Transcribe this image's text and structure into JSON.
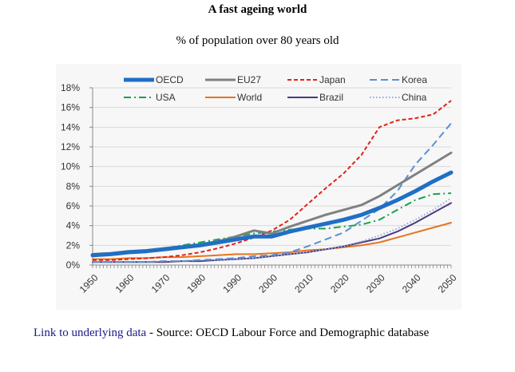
{
  "page": {
    "title": "A fast ageing world",
    "subtitle": "% of population over 80 years old",
    "footer": {
      "link_text": "Link to underlying data",
      "source_text": " - Source: OECD Labour Force and Demographic database"
    }
  },
  "chart_data": {
    "type": "line",
    "title": "A fast ageing world",
    "subtitle": "% of population over 80 years old",
    "xlabel": "",
    "ylabel": "",
    "xlim": [
      1950,
      2050
    ],
    "ylim": [
      0,
      18
    ],
    "grid": true,
    "legend_position": "top",
    "yticks": [
      "0%",
      "2%",
      "4%",
      "6%",
      "8%",
      "10%",
      "12%",
      "14%",
      "16%",
      "18%"
    ],
    "xticks": [
      "1950",
      "1960",
      "1970",
      "1980",
      "1990",
      "2000",
      "2010",
      "2020",
      "2030",
      "2040",
      "2050"
    ],
    "x": [
      1950,
      1955,
      1960,
      1965,
      1970,
      1975,
      1980,
      1985,
      1990,
      1995,
      2000,
      2005,
      2010,
      2015,
      2020,
      2025,
      2030,
      2035,
      2040,
      2045,
      2050
    ],
    "series": [
      {
        "name": "OECD",
        "color": "#1f6fc5",
        "style": "solid",
        "width": 5,
        "values": [
          1.0,
          1.1,
          1.3,
          1.4,
          1.6,
          1.8,
          2.0,
          2.3,
          2.6,
          2.9,
          2.9,
          3.4,
          3.8,
          4.2,
          4.6,
          5.1,
          5.8,
          6.6,
          7.5,
          8.5,
          9.4
        ]
      },
      {
        "name": "EU27",
        "color": "#808080",
        "style": "solid",
        "width": 3,
        "values": [
          1.1,
          1.2,
          1.4,
          1.5,
          1.7,
          1.9,
          2.1,
          2.4,
          2.9,
          3.5,
          3.2,
          3.9,
          4.5,
          5.1,
          5.6,
          6.1,
          7.0,
          8.1,
          9.2,
          10.3,
          11.4
        ]
      },
      {
        "name": "Japan",
        "color": "#e32119",
        "style": "dash",
        "width": 2,
        "values": [
          0.5,
          0.5,
          0.6,
          0.7,
          0.8,
          1.0,
          1.3,
          1.7,
          2.2,
          2.8,
          3.5,
          4.6,
          6.2,
          7.8,
          9.3,
          11.2,
          14.0,
          14.7,
          14.9,
          15.3,
          16.7
        ]
      },
      {
        "name": "Korea",
        "color": "#5b8fd4",
        "style": "longdash",
        "width": 2,
        "values": [
          0.3,
          0.3,
          0.3,
          0.3,
          0.4,
          0.4,
          0.5,
          0.6,
          0.7,
          0.9,
          1.0,
          1.3,
          1.9,
          2.6,
          3.3,
          4.5,
          5.7,
          7.5,
          10.2,
          12.2,
          14.4
        ]
      },
      {
        "name": "USA",
        "color": "#1aa34a",
        "style": "dashdot",
        "width": 2,
        "values": [
          1.1,
          1.2,
          1.4,
          1.5,
          1.7,
          2.0,
          2.3,
          2.6,
          2.9,
          3.2,
          3.4,
          3.6,
          3.7,
          3.7,
          3.9,
          4.1,
          4.6,
          5.6,
          6.6,
          7.2,
          7.3
        ]
      },
      {
        "name": "World",
        "color": "#e8741d",
        "style": "solid",
        "width": 2,
        "values": [
          0.6,
          0.6,
          0.7,
          0.7,
          0.8,
          0.8,
          0.9,
          1.0,
          1.1,
          1.1,
          1.2,
          1.3,
          1.5,
          1.6,
          1.8,
          2.0,
          2.3,
          2.8,
          3.3,
          3.8,
          4.3
        ]
      },
      {
        "name": "Brazil",
        "color": "#4b3a7d",
        "style": "solid",
        "width": 2,
        "values": [
          0.3,
          0.3,
          0.3,
          0.3,
          0.3,
          0.4,
          0.4,
          0.5,
          0.6,
          0.7,
          0.9,
          1.1,
          1.3,
          1.6,
          1.9,
          2.3,
          2.7,
          3.4,
          4.3,
          5.3,
          6.3
        ]
      },
      {
        "name": "China",
        "color": "#8faadc",
        "style": "dot",
        "width": 2,
        "values": [
          0.3,
          0.3,
          0.3,
          0.3,
          0.4,
          0.4,
          0.5,
          0.5,
          0.6,
          0.7,
          0.9,
          1.1,
          1.3,
          1.6,
          1.9,
          2.4,
          3.0,
          3.7,
          4.6,
          5.6,
          6.8
        ]
      }
    ]
  }
}
